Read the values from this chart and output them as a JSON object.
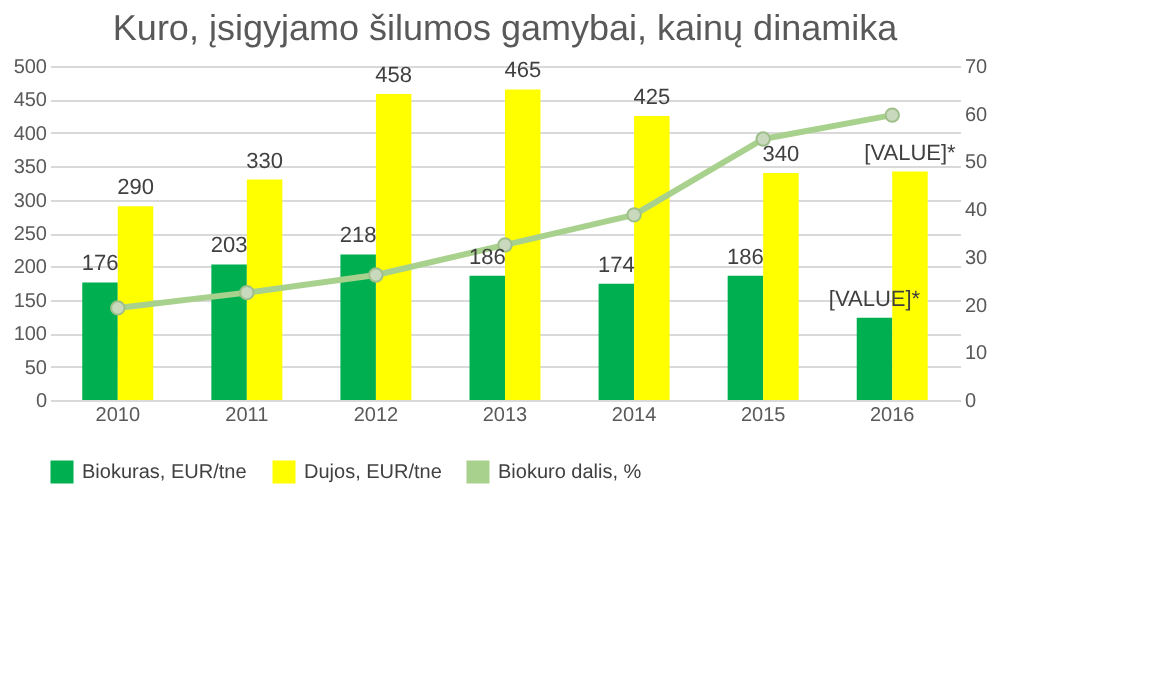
{
  "chart_data": {
    "type": "bar",
    "title": "Kuro, įsigyjamo šilumos gamybai, kainų dinamika",
    "categories": [
      "2010",
      "2011",
      "2012",
      "2013",
      "2014",
      "2015",
      "2016"
    ],
    "series": [
      {
        "name": "Biokuras, EUR/tne",
        "color": "#00b050",
        "values": [
          176,
          203,
          218,
          186,
          174,
          186,
          123
        ],
        "value_labels": [
          "176",
          "203",
          "218",
          "186",
          "174",
          "186",
          "[VALUE]*"
        ]
      },
      {
        "name": "Dujos, EUR/tne",
        "color": "#ffff00",
        "values": [
          290,
          330,
          458,
          465,
          425,
          340,
          342
        ],
        "value_labels": [
          "290",
          "330",
          "458",
          "465",
          "425",
          "340",
          "[VALUE]*"
        ]
      },
      {
        "name": "Biokuro dalis, %",
        "type": "line",
        "axis": "y2",
        "color": "#a9d18e",
        "marker": "circle",
        "values": [
          19.3,
          22.5,
          26.2,
          32.5,
          38.8,
          54.7,
          59.7
        ]
      }
    ],
    "ylim": [
      0,
      500
    ],
    "yticks": [
      0,
      50,
      100,
      150,
      200,
      250,
      300,
      350,
      400,
      450,
      500
    ],
    "y2lim": [
      0,
      70
    ],
    "y2ticks": [
      0,
      10,
      20,
      30,
      40,
      50,
      60,
      70
    ],
    "grid": "y",
    "legend": "bottom"
  }
}
